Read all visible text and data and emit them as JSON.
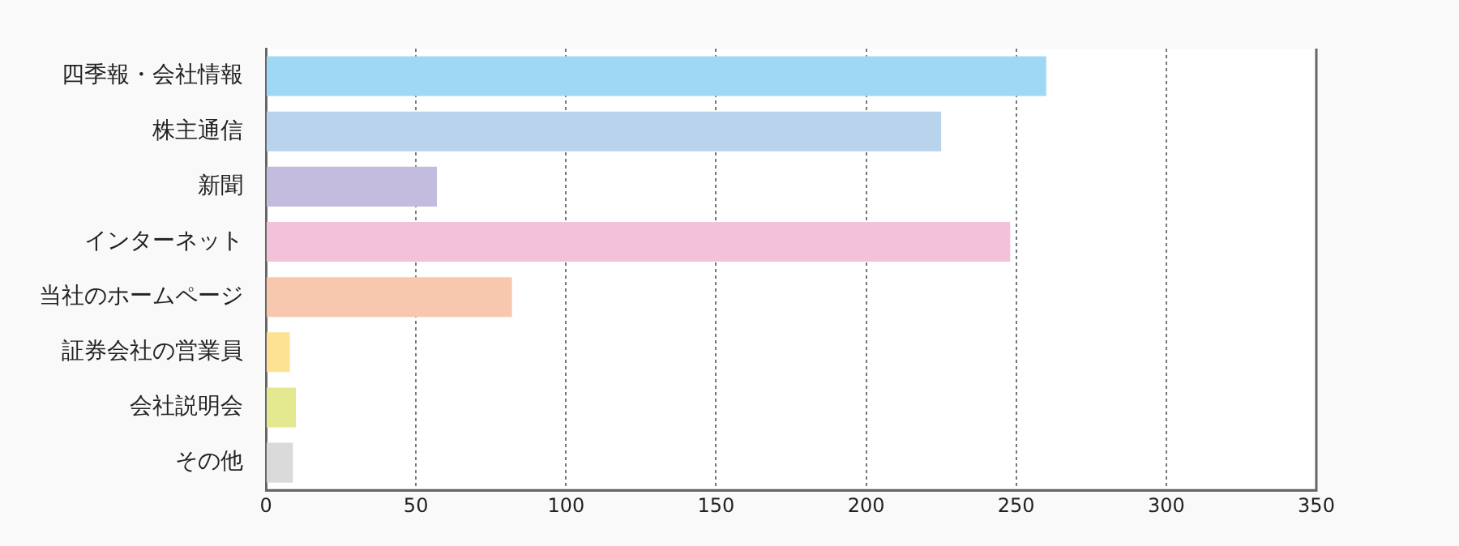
{
  "chart_data": {
    "type": "bar",
    "orientation": "horizontal",
    "categories": [
      "四季報・会社情報",
      "株主通信",
      "新聞",
      "インターネット",
      "当社のホームページ",
      "証券会社の営業員",
      "会社説明会",
      "その他"
    ],
    "values": [
      260,
      225,
      57,
      248,
      82,
      8,
      10,
      9
    ],
    "colors": [
      "#9fd8f4",
      "#b9d3ec",
      "#c4bcde",
      "#f3c1da",
      "#f7c8ae",
      "#fde293",
      "#e4e98f",
      "#dadada"
    ],
    "xlim": [
      0,
      350
    ],
    "xticks": [
      0,
      50,
      100,
      150,
      200,
      250,
      300,
      350
    ],
    "grid": "x"
  }
}
